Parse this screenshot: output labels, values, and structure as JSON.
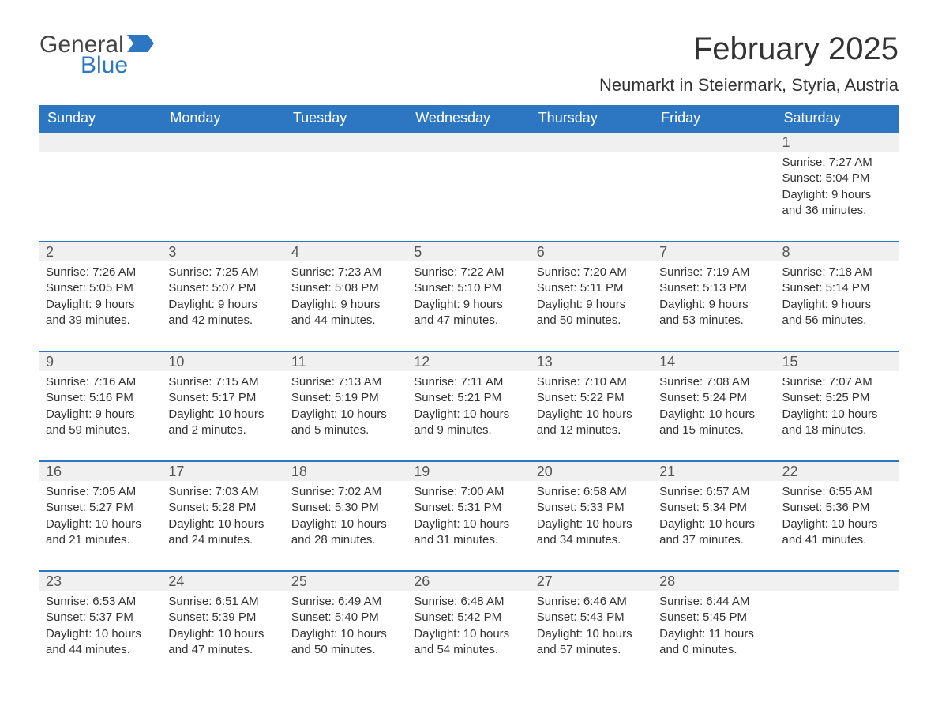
{
  "logo": {
    "text_general": "General",
    "text_blue": "Blue",
    "accent_color": "#2d77c2"
  },
  "header": {
    "title": "February 2025",
    "location": "Neumarkt in Steiermark, Styria, Austria"
  },
  "colors": {
    "header_bg": "#2d77c2",
    "header_text": "#ffffff",
    "daynum_bg": "#f0f0f0",
    "text": "#333333",
    "week_divider": "#2d77c2"
  },
  "calendar": {
    "columns": [
      "Sunday",
      "Monday",
      "Tuesday",
      "Wednesday",
      "Thursday",
      "Friday",
      "Saturday"
    ],
    "weeks": [
      [
        null,
        null,
        null,
        null,
        null,
        null,
        {
          "n": "1",
          "sunrise": "7:27 AM",
          "sunset": "5:04 PM",
          "daylight": "9 hours and 36 minutes."
        }
      ],
      [
        {
          "n": "2",
          "sunrise": "7:26 AM",
          "sunset": "5:05 PM",
          "daylight": "9 hours and 39 minutes."
        },
        {
          "n": "3",
          "sunrise": "7:25 AM",
          "sunset": "5:07 PM",
          "daylight": "9 hours and 42 minutes."
        },
        {
          "n": "4",
          "sunrise": "7:23 AM",
          "sunset": "5:08 PM",
          "daylight": "9 hours and 44 minutes."
        },
        {
          "n": "5",
          "sunrise": "7:22 AM",
          "sunset": "5:10 PM",
          "daylight": "9 hours and 47 minutes."
        },
        {
          "n": "6",
          "sunrise": "7:20 AM",
          "sunset": "5:11 PM",
          "daylight": "9 hours and 50 minutes."
        },
        {
          "n": "7",
          "sunrise": "7:19 AM",
          "sunset": "5:13 PM",
          "daylight": "9 hours and 53 minutes."
        },
        {
          "n": "8",
          "sunrise": "7:18 AM",
          "sunset": "5:14 PM",
          "daylight": "9 hours and 56 minutes."
        }
      ],
      [
        {
          "n": "9",
          "sunrise": "7:16 AM",
          "sunset": "5:16 PM",
          "daylight": "9 hours and 59 minutes."
        },
        {
          "n": "10",
          "sunrise": "7:15 AM",
          "sunset": "5:17 PM",
          "daylight": "10 hours and 2 minutes."
        },
        {
          "n": "11",
          "sunrise": "7:13 AM",
          "sunset": "5:19 PM",
          "daylight": "10 hours and 5 minutes."
        },
        {
          "n": "12",
          "sunrise": "7:11 AM",
          "sunset": "5:21 PM",
          "daylight": "10 hours and 9 minutes."
        },
        {
          "n": "13",
          "sunrise": "7:10 AM",
          "sunset": "5:22 PM",
          "daylight": "10 hours and 12 minutes."
        },
        {
          "n": "14",
          "sunrise": "7:08 AM",
          "sunset": "5:24 PM",
          "daylight": "10 hours and 15 minutes."
        },
        {
          "n": "15",
          "sunrise": "7:07 AM",
          "sunset": "5:25 PM",
          "daylight": "10 hours and 18 minutes."
        }
      ],
      [
        {
          "n": "16",
          "sunrise": "7:05 AM",
          "sunset": "5:27 PM",
          "daylight": "10 hours and 21 minutes."
        },
        {
          "n": "17",
          "sunrise": "7:03 AM",
          "sunset": "5:28 PM",
          "daylight": "10 hours and 24 minutes."
        },
        {
          "n": "18",
          "sunrise": "7:02 AM",
          "sunset": "5:30 PM",
          "daylight": "10 hours and 28 minutes."
        },
        {
          "n": "19",
          "sunrise": "7:00 AM",
          "sunset": "5:31 PM",
          "daylight": "10 hours and 31 minutes."
        },
        {
          "n": "20",
          "sunrise": "6:58 AM",
          "sunset": "5:33 PM",
          "daylight": "10 hours and 34 minutes."
        },
        {
          "n": "21",
          "sunrise": "6:57 AM",
          "sunset": "5:34 PM",
          "daylight": "10 hours and 37 minutes."
        },
        {
          "n": "22",
          "sunrise": "6:55 AM",
          "sunset": "5:36 PM",
          "daylight": "10 hours and 41 minutes."
        }
      ],
      [
        {
          "n": "23",
          "sunrise": "6:53 AM",
          "sunset": "5:37 PM",
          "daylight": "10 hours and 44 minutes."
        },
        {
          "n": "24",
          "sunrise": "6:51 AM",
          "sunset": "5:39 PM",
          "daylight": "10 hours and 47 minutes."
        },
        {
          "n": "25",
          "sunrise": "6:49 AM",
          "sunset": "5:40 PM",
          "daylight": "10 hours and 50 minutes."
        },
        {
          "n": "26",
          "sunrise": "6:48 AM",
          "sunset": "5:42 PM",
          "daylight": "10 hours and 54 minutes."
        },
        {
          "n": "27",
          "sunrise": "6:46 AM",
          "sunset": "5:43 PM",
          "daylight": "10 hours and 57 minutes."
        },
        {
          "n": "28",
          "sunrise": "6:44 AM",
          "sunset": "5:45 PM",
          "daylight": "11 hours and 0 minutes."
        },
        null
      ]
    ],
    "labels": {
      "sunrise": "Sunrise: ",
      "sunset": "Sunset: ",
      "daylight": "Daylight: "
    }
  }
}
